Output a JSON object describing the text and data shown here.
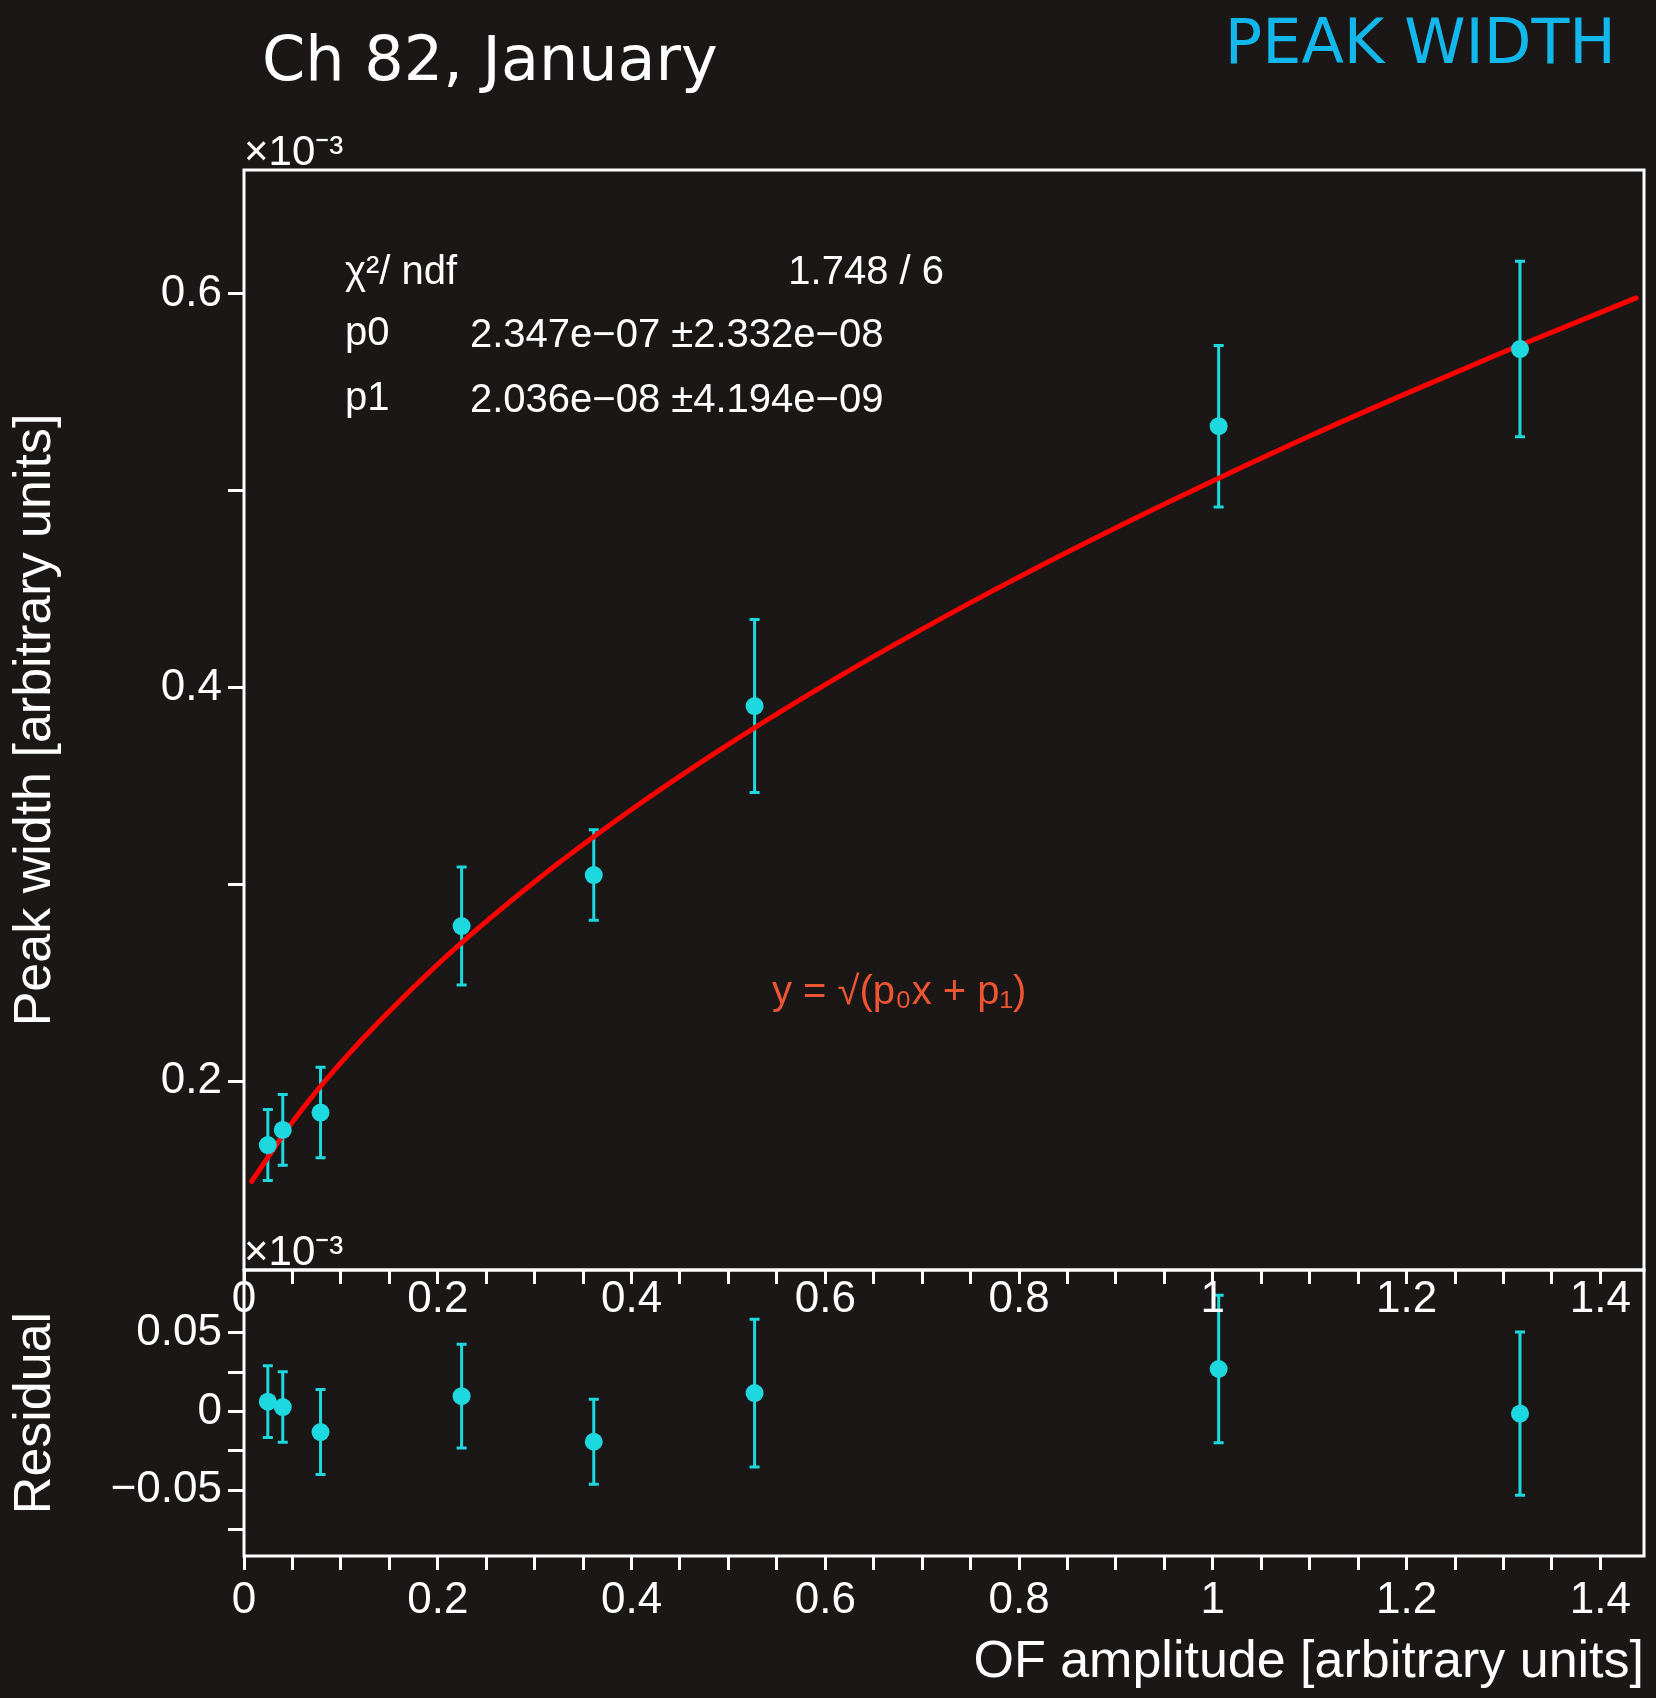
{
  "chart_data": [
    {
      "type": "scatter",
      "title": "Ch 82, January",
      "subtitle": "PEAK WIDTH",
      "ylabel": "Peak width [arbitrary units]",
      "annotations": [
        "×10⁻³",
        "χ²/ ndf",
        "1.748 / 6",
        "p0",
        "2.347e−07 ±2.332e−08",
        "p1",
        "2.036e−08 ±4.194e−09",
        "y = √(p₀x + p₁)"
      ],
      "series": [
        {
          "type": "scatter",
          "color": "#1ed8e0",
          "marker": "circle",
          "x": [
            0.0246,
            0.04,
            0.079,
            0.2246,
            0.361,
            0.527,
            1.006,
            1.317
          ],
          "values": [
            0.1675,
            0.1752,
            0.184,
            0.2788,
            0.3047,
            0.3906,
            0.5328,
            0.572
          ],
          "errors": [
            0.018,
            0.018,
            0.023,
            0.03,
            0.023,
            0.044,
            0.041,
            0.0446
          ]
        },
        {
          "type": "line",
          "color": "#ff0000",
          "marker": "none",
          "x": [
            0.008,
            0.05,
            0.1,
            0.2,
            0.3,
            0.4,
            0.5,
            0.6,
            0.7,
            0.8,
            0.9,
            1.0,
            1.1,
            1.2,
            1.3,
            1.437
          ],
          "values": [
            0.1491,
            0.1792,
            0.2094,
            0.2594,
            0.3013,
            0.338,
            0.3711,
            0.4015,
            0.4297,
            0.4562,
            0.4812,
            0.505,
            0.5278,
            0.5495,
            0.5705,
            0.598
          ]
        }
      ],
      "xlim": [
        0,
        1.445
      ],
      "ylim": [
        0.104,
        0.663
      ],
      "xticks": [
        0,
        {
          "value": 0.05,
          "label": null
        },
        {
          "value": 0.1,
          "label": null
        },
        {
          "value": 0.15,
          "label": null
        },
        0.2,
        {
          "value": 0.25,
          "label": null
        },
        {
          "value": 0.3,
          "label": null
        },
        {
          "value": 0.35,
          "label": null
        },
        0.4,
        {
          "value": 0.45,
          "label": null
        },
        {
          "value": 0.5,
          "label": null
        },
        {
          "value": 0.55,
          "label": null
        },
        0.6,
        {
          "value": 0.65,
          "label": null
        },
        {
          "value": 0.7,
          "label": null
        },
        {
          "value": 0.75,
          "label": null
        },
        0.8,
        {
          "value": 0.85,
          "label": null
        },
        {
          "value": 0.9,
          "label": null
        },
        {
          "value": 0.95,
          "label": null
        },
        1,
        {
          "value": 1.05,
          "label": null
        },
        {
          "value": 1.1,
          "label": null
        },
        {
          "value": 1.15,
          "label": null
        },
        1.2,
        {
          "value": 1.25,
          "label": null
        },
        {
          "value": 1.3,
          "label": null
        },
        {
          "value": 1.35,
          "label": null
        },
        1.4
      ],
      "yticks": [
        0.2,
        {
          "value": 0.3,
          "label": null
        },
        0.4,
        {
          "value": 0.5,
          "label": null
        },
        0.6
      ],
      "tick_labels": "y",
      "grid": false,
      "legend": false
    },
    {
      "type": "scatter",
      "ylabel": "Residual",
      "xlabel": "OF amplitude [arbitrary units]",
      "annotations": [
        "×10⁻³"
      ],
      "series": [
        {
          "type": "scatter",
          "color": "#1ed8e0",
          "marker": "circle",
          "x": [
            0.0246,
            0.04,
            0.079,
            0.2246,
            0.361,
            0.527,
            1.006,
            1.317
          ],
          "values": [
            0.0062,
            0.0028,
            -0.0131,
            0.0097,
            -0.0193,
            0.0117,
            0.027,
            -0.0014
          ],
          "errors": [
            0.0228,
            0.0224,
            0.027,
            0.033,
            0.027,
            0.047,
            0.047,
            0.052
          ]
        }
      ],
      "xlim": [
        0,
        1.445
      ],
      "ylim": [
        -0.092,
        0.09
      ],
      "xticks": [
        0,
        {
          "value": 0.05,
          "label": null
        },
        {
          "value": 0.1,
          "label": null
        },
        {
          "value": 0.15,
          "label": null
        },
        0.2,
        {
          "value": 0.25,
          "label": null
        },
        {
          "value": 0.3,
          "label": null
        },
        {
          "value": 0.35,
          "label": null
        },
        0.4,
        {
          "value": 0.45,
          "label": null
        },
        {
          "value": 0.5,
          "label": null
        },
        {
          "value": 0.55,
          "label": null
        },
        0.6,
        {
          "value": 0.65,
          "label": null
        },
        {
          "value": 0.7,
          "label": null
        },
        {
          "value": 0.75,
          "label": null
        },
        0.8,
        {
          "value": 0.85,
          "label": null
        },
        {
          "value": 0.9,
          "label": null
        },
        {
          "value": 0.95,
          "label": null
        },
        1,
        {
          "value": 1.05,
          "label": null
        },
        {
          "value": 1.1,
          "label": null
        },
        {
          "value": 1.15,
          "label": null
        },
        1.2,
        {
          "value": 1.25,
          "label": null
        },
        {
          "value": 1.3,
          "label": null
        },
        {
          "value": 1.35,
          "label": null
        },
        1.4
      ],
      "x2lim": [
        0,
        1.445
      ],
      "x2ticks": [
        0,
        0.2,
        0.4,
        0.6,
        0.8,
        1,
        1.2,
        1.4
      ],
      "yticks": [
        {
          "value": -0.075,
          "label": null
        },
        {
          "value": -0.05,
          "label": "−0.05"
        },
        {
          "value": -0.025,
          "label": null
        },
        0,
        {
          "value": 0.025,
          "label": null
        },
        0.05
      ],
      "grid": false,
      "legend": false
    }
  ]
}
